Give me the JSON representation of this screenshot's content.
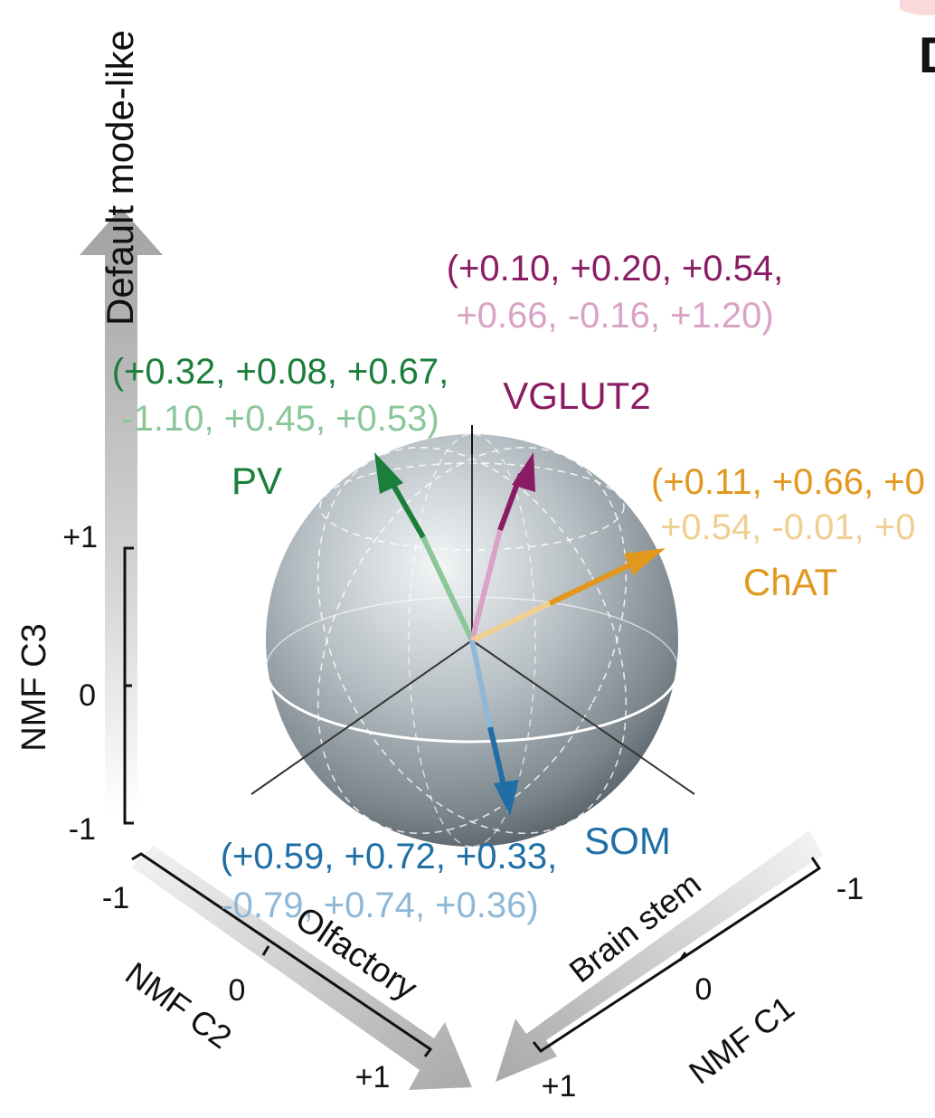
{
  "panel_letter": "D",
  "axes": {
    "c3": {
      "name": "NMF C3",
      "trend": "Default mode-like",
      "ticks": [
        "+1",
        "0",
        "-1"
      ]
    },
    "c2": {
      "name": "NMF C2",
      "trend": "Olfactory",
      "ticks": [
        "-1",
        "0",
        "+1"
      ]
    },
    "c1": {
      "name": "NMF C1",
      "trend": "Brain stem",
      "ticks": [
        "-1",
        "0",
        "+1"
      ]
    }
  },
  "vectors": [
    {
      "name": "PV",
      "line1": "(+0.32, +0.08, +0.67,",
      "line2": "-1.10, +0.45, +0.53)",
      "color": "#1b7f3b",
      "light": "#8cc79a"
    },
    {
      "name": "VGLUT2",
      "line1": "(+0.10, +0.20, +0.54,",
      "line2": "+0.66, -0.16, +1.20)",
      "color": "#8a1c64",
      "light": "#d9a3c6"
    },
    {
      "name": "ChAT",
      "line1": "(+0.11, +0.66, +0",
      "line2": "+0.54, -0.01, +0",
      "color": "#e2981e",
      "light": "#f0cf92"
    },
    {
      "name": "SOM",
      "line1": "(+0.59, +0.72, +0.33,",
      "line2": "-0.79, +0.74, +0.36)",
      "color": "#1f6fa6",
      "light": "#8fb8d6"
    }
  ]
}
